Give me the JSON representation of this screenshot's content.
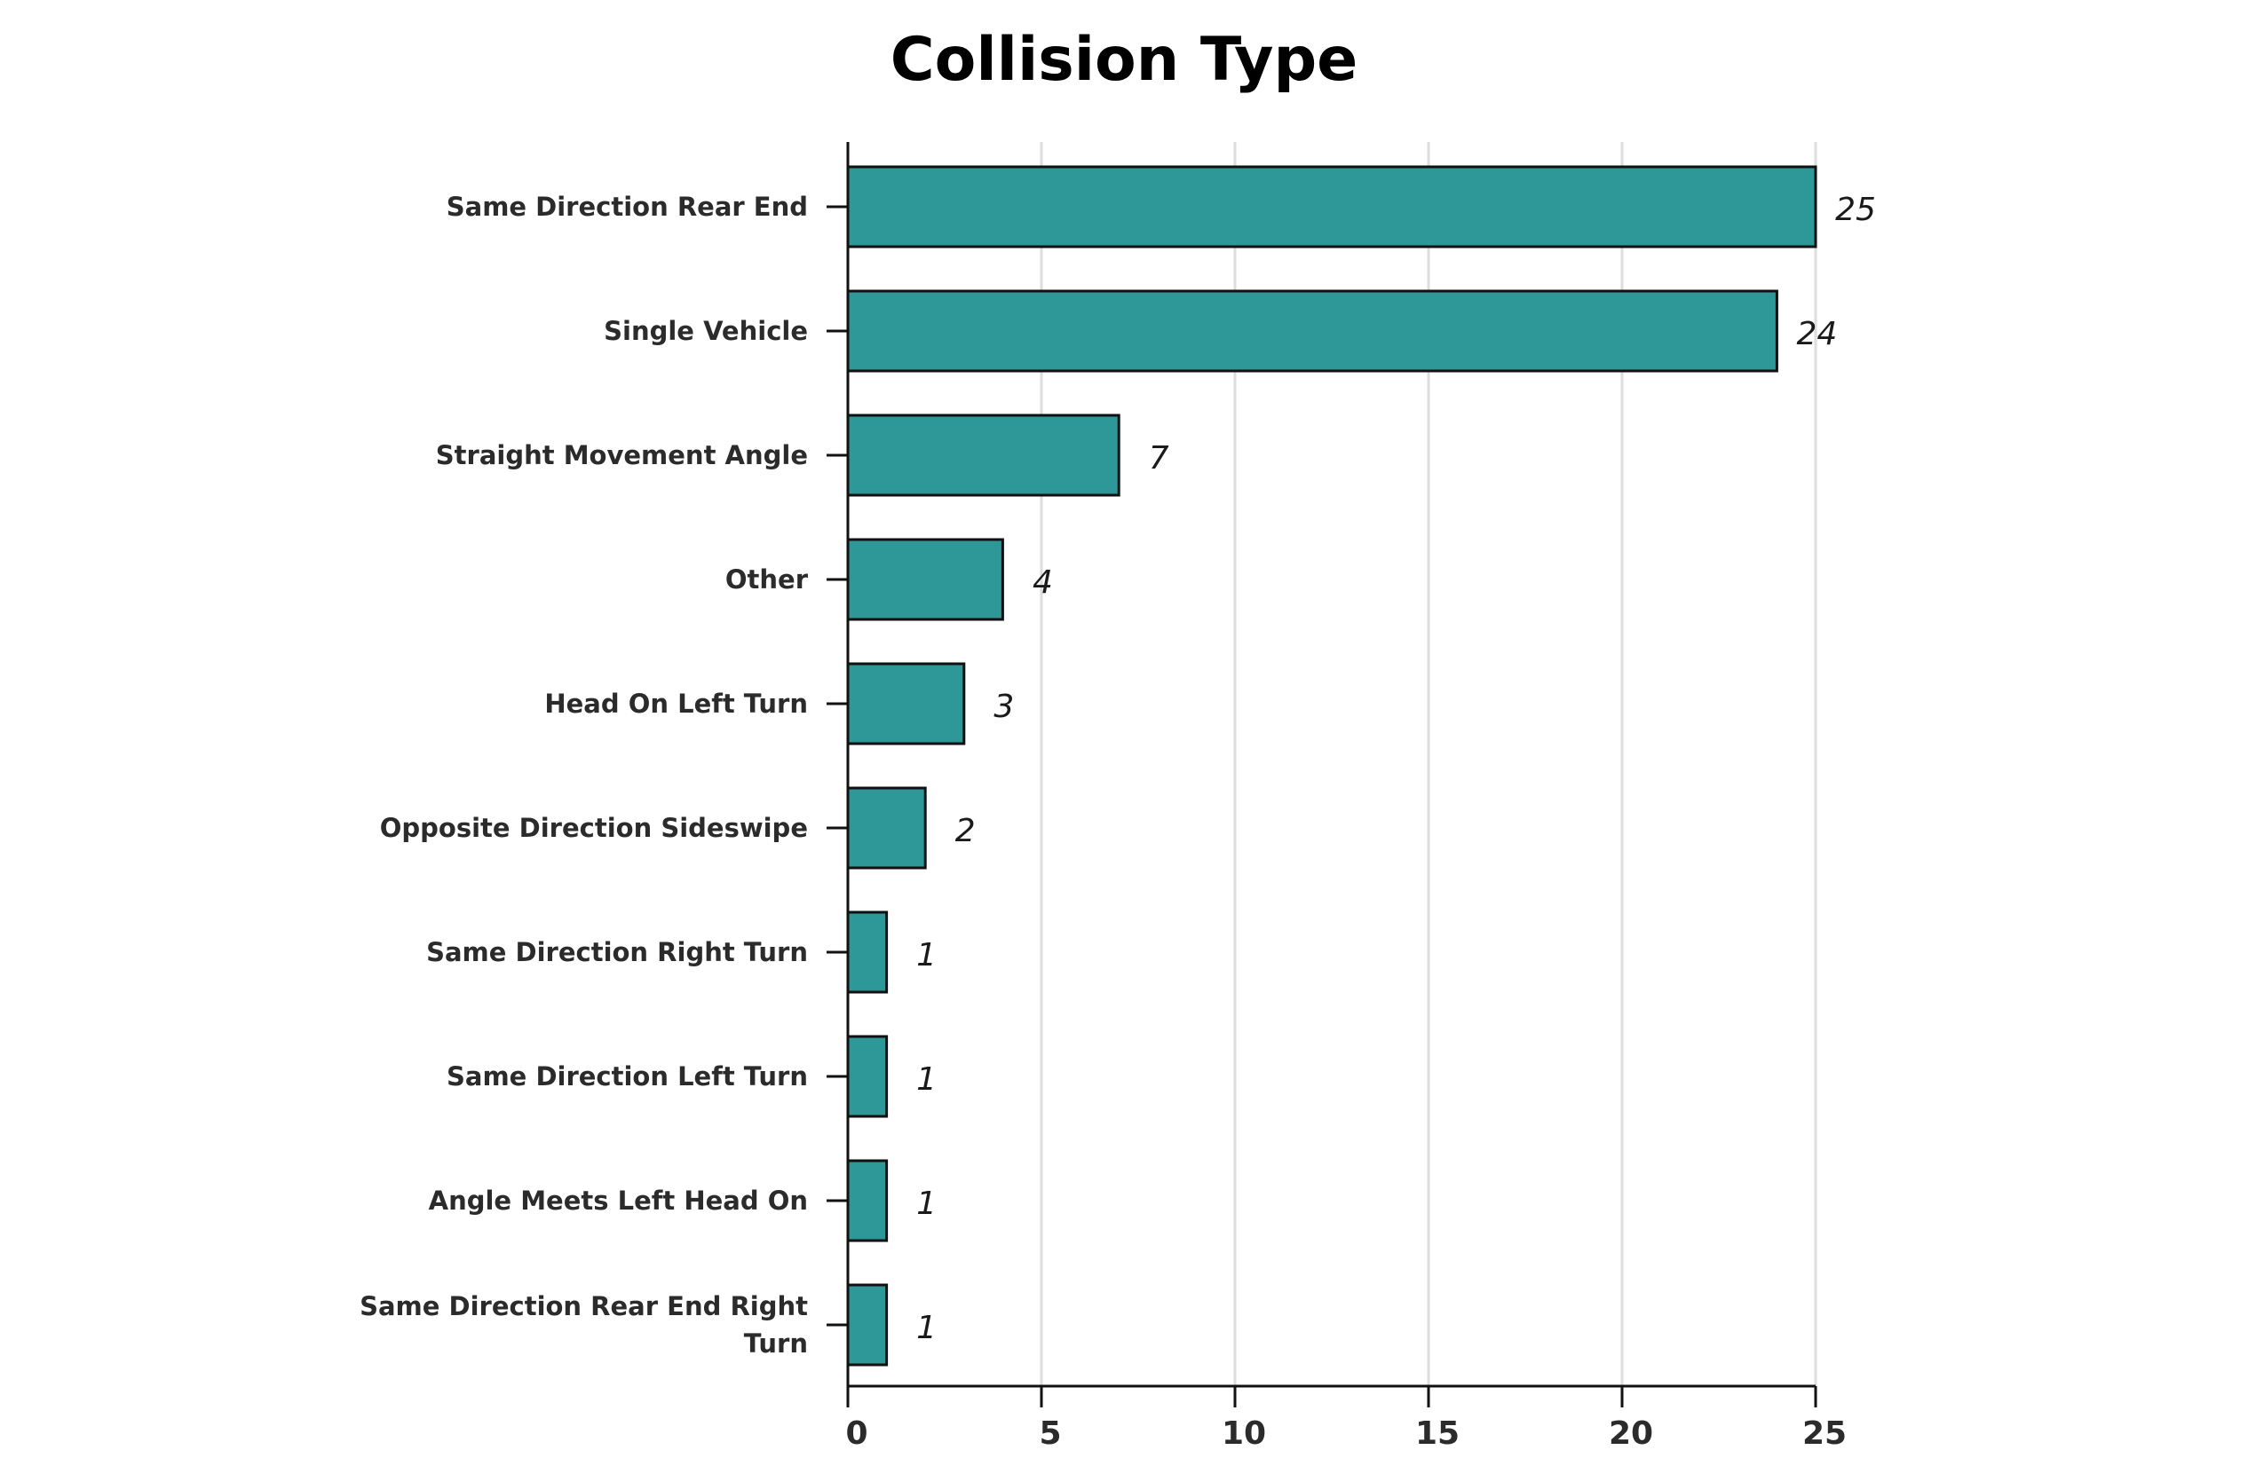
{
  "chart_data": {
    "type": "bar",
    "orientation": "horizontal",
    "title": "Collision Type",
    "xlabel": "",
    "ylabel": "",
    "categories": [
      "Same Direction Rear End",
      "Single Vehicle",
      "Straight Movement Angle",
      "Other",
      "Head On Left Turn",
      "Opposite Direction Sideswipe",
      "Same Direction Right Turn",
      "Same Direction Left Turn",
      "Angle Meets Left Head On",
      "Same Direction Rear End Right Turn"
    ],
    "values": [
      25,
      24,
      7,
      4,
      3,
      2,
      1,
      1,
      1,
      1
    ],
    "xlim": [
      0,
      25
    ],
    "xticks": [
      "0",
      "5",
      "10",
      "15",
      "20",
      "25"
    ],
    "grid": "vertical",
    "bar_color": "#2e9797",
    "bar_edge_color": "#111111"
  }
}
